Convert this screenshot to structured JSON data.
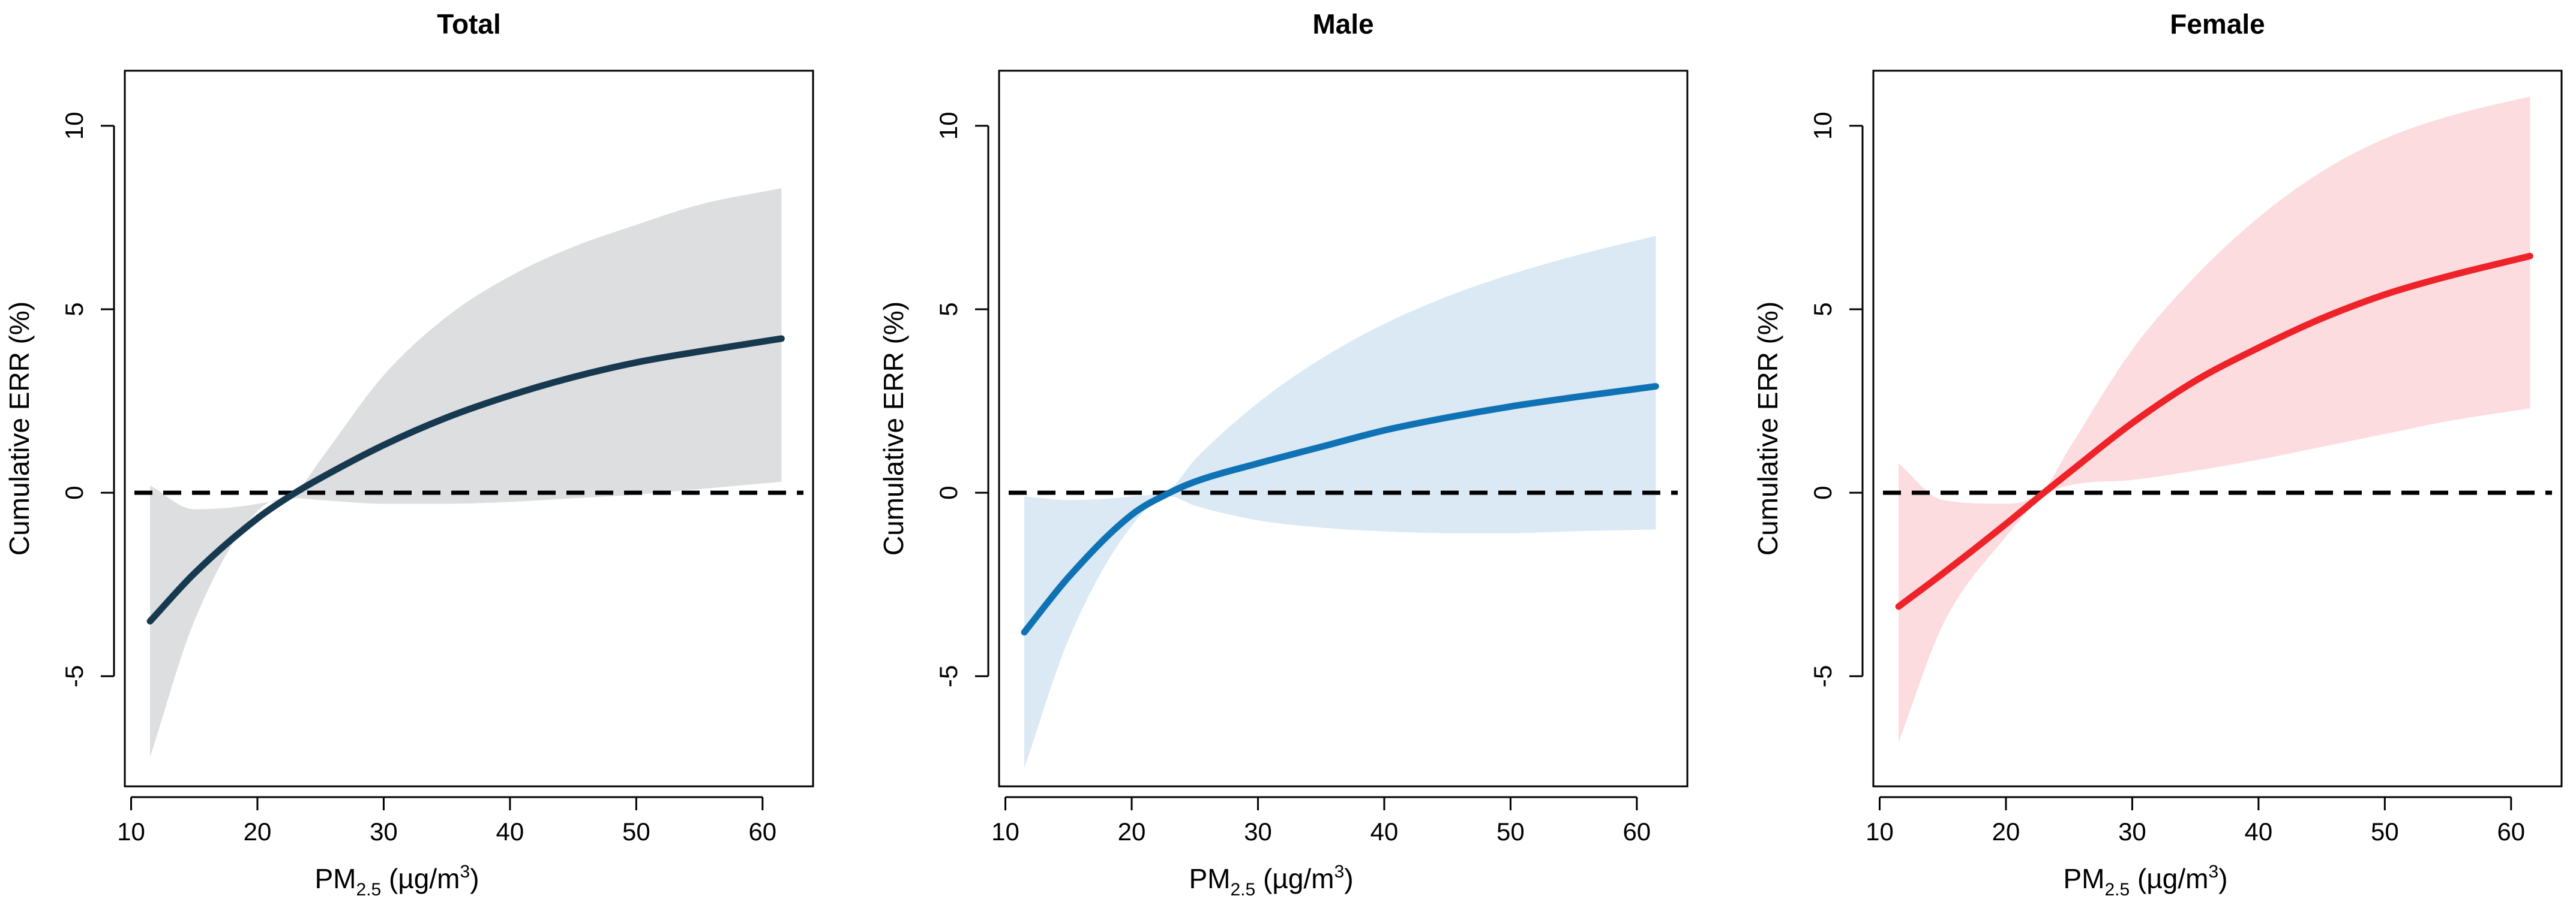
{
  "figure": {
    "panels": [
      {
        "title": "Total",
        "color_line": "#17394f",
        "color_band": "#dcdee0"
      },
      {
        "title": "Male",
        "color_line": "#0f72b4",
        "color_band": "#dae9f4"
      },
      {
        "title": "Female",
        "color_line": "#ee2329",
        "color_band": "#fcdcdf"
      }
    ]
  },
  "chart_data": [
    {
      "type": "line",
      "title": "Total",
      "xlabel_main": "PM",
      "xlabel_sub": "2.5",
      "xlabel_pre": " (µg/m",
      "xlabel_sup": "3",
      "xlabel_post": ")",
      "ylabel": "Cumulative ERR (%)",
      "xlim": [
        9.5,
        64
      ],
      "ylim": [
        -8,
        11.5
      ],
      "xticks": [
        10,
        20,
        30,
        40,
        50,
        60
      ],
      "yticks": [
        -5,
        0,
        5,
        10
      ],
      "reference_line": 0,
      "x": [
        11.5,
        15,
        20,
        23,
        25,
        30,
        35,
        40,
        45,
        50,
        55,
        61.5
      ],
      "y": [
        -3.5,
        -2.2,
        -0.7,
        0,
        0.4,
        1.3,
        2.05,
        2.65,
        3.15,
        3.55,
        3.85,
        4.2
      ],
      "lower": [
        -7.2,
        -3.5,
        -0.5,
        -0.15,
        -0.2,
        -0.3,
        -0.3,
        -0.25,
        -0.15,
        -0.05,
        0.1,
        0.3
      ],
      "upper": [
        0.2,
        -0.45,
        -0.3,
        0,
        0.9,
        3.2,
        4.8,
        5.9,
        6.7,
        7.3,
        7.85,
        8.3
      ]
    },
    {
      "type": "line",
      "title": "Male",
      "xlabel_main": "PM",
      "xlabel_sub": "2.5",
      "xlabel_pre": " (µg/m",
      "xlabel_sup": "3",
      "xlabel_post": ")",
      "ylabel": "Cumulative ERR (%)",
      "xlim": [
        9.5,
        64
      ],
      "ylim": [
        -8,
        11.5
      ],
      "xticks": [
        10,
        20,
        30,
        40,
        50,
        60
      ],
      "yticks": [
        -5,
        0,
        5,
        10
      ],
      "reference_line": 0,
      "x": [
        11.5,
        15,
        20,
        23,
        25,
        30,
        35,
        40,
        45,
        50,
        55,
        61.5
      ],
      "y": [
        -3.8,
        -2.3,
        -0.6,
        0,
        0.3,
        0.8,
        1.25,
        1.7,
        2.05,
        2.35,
        2.6,
        2.9
      ],
      "lower": [
        -7.5,
        -4.0,
        -0.9,
        -0.1,
        -0.35,
        -0.75,
        -0.95,
        -1.05,
        -1.1,
        -1.1,
        -1.05,
        -1.0
      ],
      "upper": [
        -0.1,
        -0.2,
        -0.1,
        0.1,
        0.9,
        2.45,
        3.65,
        4.6,
        5.35,
        5.95,
        6.45,
        7.0
      ]
    },
    {
      "type": "line",
      "title": "Female",
      "xlabel_main": "PM",
      "xlabel_sub": "2.5",
      "xlabel_pre": " (µg/m",
      "xlabel_sup": "3",
      "xlabel_post": ")",
      "ylabel": "Cumulative ERR (%)",
      "xlim": [
        9.5,
        64
      ],
      "ylim": [
        -8,
        11.5
      ],
      "xticks": [
        10,
        20,
        30,
        40,
        50,
        60
      ],
      "yticks": [
        -5,
        0,
        5,
        10
      ],
      "reference_line": 0,
      "x": [
        11.5,
        15,
        20,
        23,
        25,
        30,
        35,
        40,
        45,
        50,
        55,
        61.5
      ],
      "y": [
        -3.1,
        -2.2,
        -0.85,
        0,
        0.55,
        1.9,
        3.05,
        3.95,
        4.75,
        5.4,
        5.9,
        6.45
      ],
      "lower": [
        -6.8,
        -3.6,
        -1.2,
        -0.1,
        0.2,
        0.35,
        0.6,
        0.9,
        1.25,
        1.6,
        1.95,
        2.3
      ],
      "upper": [
        0.8,
        -0.2,
        -0.3,
        0.1,
        1.2,
        3.9,
        5.9,
        7.5,
        8.75,
        9.65,
        10.25,
        10.8
      ]
    }
  ]
}
